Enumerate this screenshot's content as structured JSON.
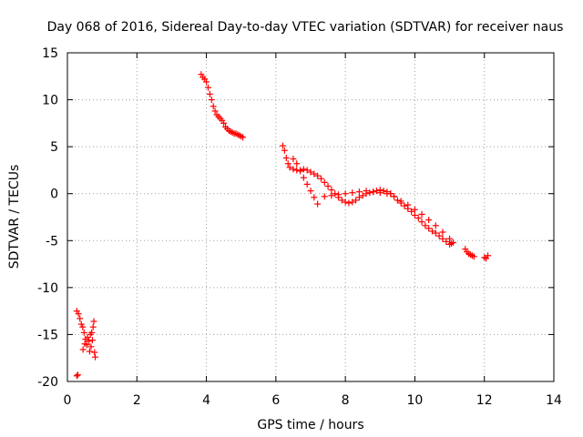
{
  "chart_data": {
    "type": "scatter",
    "title": "Day 068 of 2016, Sidereal Day-to-day VTEC variation (SDTVAR) for receiver naus",
    "xlabel": "GPS time / hours",
    "ylabel": "SDTVAR / TECUs",
    "xlim": [
      0,
      14
    ],
    "ylim": [
      -20,
      15
    ],
    "xticks": [
      0,
      2,
      4,
      6,
      8,
      10,
      12,
      14
    ],
    "yticks": [
      -20,
      -15,
      -10,
      -5,
      0,
      5,
      10,
      15
    ],
    "grid": true,
    "marker": "plus",
    "color": "#ff0000",
    "segments": [
      {
        "name": "arc-1-high",
        "points": [
          [
            0.27,
            -12.5
          ],
          [
            0.32,
            -12.8
          ],
          [
            0.36,
            -13.3
          ],
          [
            0.4,
            -13.9
          ],
          [
            0.44,
            -14.2
          ],
          [
            0.48,
            -14.8
          ]
        ]
      },
      {
        "name": "arc-1-cluster",
        "points": [
          [
            0.45,
            -16.6
          ],
          [
            0.5,
            -16.0
          ],
          [
            0.52,
            -15.5
          ],
          [
            0.56,
            -16.1
          ],
          [
            0.58,
            -15.3
          ],
          [
            0.62,
            -15.7
          ],
          [
            0.64,
            -16.8
          ],
          [
            0.66,
            -15.0
          ],
          [
            0.68,
            -16.3
          ],
          [
            0.7,
            -14.8
          ],
          [
            0.72,
            -15.6
          ],
          [
            0.74,
            -14.2
          ],
          [
            0.76,
            -13.6
          ],
          [
            0.78,
            -16.9
          ],
          [
            0.8,
            -17.4
          ]
        ]
      },
      {
        "name": "arc-1-low",
        "points": [
          [
            0.27,
            -19.4
          ],
          [
            0.3,
            -19.3
          ]
        ]
      },
      {
        "name": "arc-2",
        "points": [
          [
            3.85,
            12.7
          ],
          [
            3.9,
            12.4
          ],
          [
            3.95,
            12.2
          ],
          [
            4.0,
            11.9
          ],
          [
            4.05,
            11.3
          ],
          [
            4.1,
            10.6
          ],
          [
            4.15,
            10.0
          ],
          [
            4.2,
            9.3
          ],
          [
            4.25,
            8.8
          ],
          [
            4.3,
            8.4
          ],
          [
            4.35,
            8.2
          ],
          [
            4.4,
            8.0
          ],
          [
            4.45,
            7.8
          ],
          [
            4.5,
            7.5
          ],
          [
            4.55,
            7.1
          ],
          [
            4.6,
            6.9
          ],
          [
            4.65,
            6.7
          ],
          [
            4.7,
            6.6
          ],
          [
            4.75,
            6.5
          ],
          [
            4.8,
            6.4
          ],
          [
            4.85,
            6.4
          ],
          [
            4.9,
            6.3
          ],
          [
            4.95,
            6.2
          ],
          [
            5.0,
            6.1
          ],
          [
            5.05,
            6.0
          ]
        ]
      },
      {
        "name": "arc-3-upper",
        "points": [
          [
            6.2,
            5.1
          ],
          [
            6.25,
            4.6
          ],
          [
            6.3,
            3.8
          ],
          [
            6.35,
            3.2
          ],
          [
            6.4,
            2.8
          ],
          [
            6.5,
            2.6
          ],
          [
            6.6,
            2.5
          ],
          [
            6.7,
            2.5
          ],
          [
            6.8,
            2.6
          ],
          [
            6.9,
            2.5
          ],
          [
            7.0,
            2.3
          ],
          [
            7.1,
            2.1
          ],
          [
            7.2,
            1.9
          ],
          [
            7.3,
            1.6
          ],
          [
            7.4,
            1.2
          ],
          [
            7.5,
            0.8
          ],
          [
            7.6,
            0.4
          ],
          [
            7.7,
            0.0
          ],
          [
            7.8,
            -0.4
          ],
          [
            7.9,
            -0.7
          ],
          [
            8.0,
            -0.9
          ],
          [
            8.1,
            -1.0
          ],
          [
            8.2,
            -0.9
          ],
          [
            8.3,
            -0.7
          ],
          [
            8.4,
            -0.4
          ],
          [
            8.5,
            -0.2
          ],
          [
            8.6,
            0.0
          ],
          [
            8.7,
            0.1
          ],
          [
            8.8,
            0.2
          ],
          [
            8.9,
            0.3
          ],
          [
            9.0,
            0.4
          ],
          [
            9.1,
            0.3
          ],
          [
            9.2,
            0.2
          ],
          [
            9.3,
            0.0
          ]
        ]
      },
      {
        "name": "arc-3-lower",
        "points": [
          [
            6.5,
            3.7
          ],
          [
            6.6,
            3.2
          ],
          [
            6.7,
            2.4
          ],
          [
            6.8,
            1.7
          ],
          [
            6.9,
            1.0
          ],
          [
            7.0,
            0.3
          ],
          [
            7.1,
            -0.4
          ],
          [
            7.2,
            -1.1
          ],
          [
            7.4,
            -0.3
          ],
          [
            7.6,
            -0.2
          ],
          [
            7.8,
            -0.1
          ],
          [
            8.0,
            0.0
          ],
          [
            8.2,
            0.1
          ],
          [
            8.4,
            0.2
          ],
          [
            8.6,
            0.3
          ],
          [
            8.8,
            0.2
          ],
          [
            9.0,
            0.1
          ],
          [
            9.2,
            0.0
          ],
          [
            9.4,
            -0.3
          ],
          [
            9.6,
            -0.8
          ],
          [
            9.8,
            -1.2
          ],
          [
            10.0,
            -1.7
          ],
          [
            10.2,
            -2.2
          ],
          [
            10.4,
            -2.8
          ],
          [
            10.6,
            -3.4
          ],
          [
            10.8,
            -4.1
          ],
          [
            11.0,
            -4.8
          ],
          [
            11.1,
            -5.2
          ]
        ]
      },
      {
        "name": "arc-3-cross",
        "points": [
          [
            9.3,
            0.0
          ],
          [
            9.4,
            -0.3
          ],
          [
            9.5,
            -0.7
          ],
          [
            9.6,
            -1.0
          ],
          [
            9.7,
            -1.3
          ],
          [
            9.8,
            -1.6
          ],
          [
            9.9,
            -1.9
          ],
          [
            10.0,
            -2.3
          ],
          [
            10.1,
            -2.6
          ],
          [
            10.2,
            -3.0
          ],
          [
            10.3,
            -3.4
          ],
          [
            10.4,
            -3.7
          ],
          [
            10.5,
            -4.0
          ],
          [
            10.6,
            -4.2
          ],
          [
            10.7,
            -4.5
          ],
          [
            10.8,
            -4.8
          ],
          [
            10.9,
            -5.1
          ],
          [
            11.0,
            -5.4
          ],
          [
            11.05,
            -5.3
          ]
        ]
      },
      {
        "name": "arc-3-tail",
        "points": [
          [
            11.45,
            -5.9
          ],
          [
            11.5,
            -6.2
          ],
          [
            11.55,
            -6.4
          ],
          [
            11.6,
            -6.5
          ],
          [
            11.65,
            -6.6
          ],
          [
            11.7,
            -6.7
          ],
          [
            12.0,
            -6.8
          ],
          [
            12.05,
            -6.9
          ],
          [
            12.1,
            -6.6
          ]
        ]
      }
    ]
  }
}
